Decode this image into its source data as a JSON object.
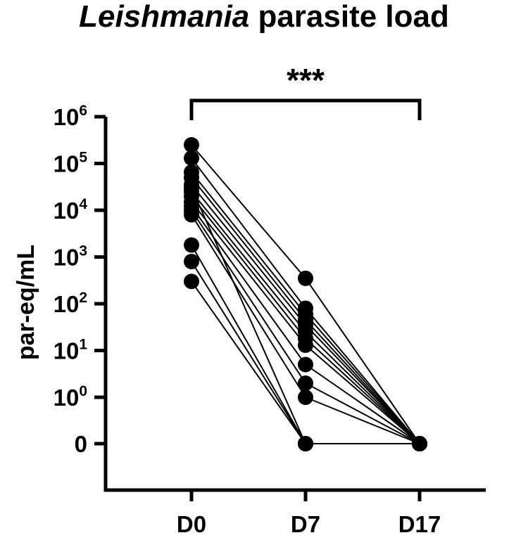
{
  "title_italic": "Leishmania",
  "title_rest": "parasite load",
  "chart_data": {
    "type": "scatter",
    "scale": "log (bottom tick represents 0)",
    "title": "Leishmania parasite load",
    "xlabel": "",
    "ylabel": "par-eq/mL",
    "categories": [
      "D0",
      "D7",
      "D17"
    ],
    "y_ticks": [
      {
        "base": "0",
        "exp": "",
        "value": 0
      },
      {
        "base": "10",
        "exp": "0",
        "value": 1
      },
      {
        "base": "10",
        "exp": "1",
        "value": 10
      },
      {
        "base": "10",
        "exp": "2",
        "value": 100
      },
      {
        "base": "10",
        "exp": "3",
        "value": 1000
      },
      {
        "base": "10",
        "exp": "4",
        "value": 10000
      },
      {
        "base": "10",
        "exp": "5",
        "value": 100000
      },
      {
        "base": "10",
        "exp": "6",
        "value": 1000000
      }
    ],
    "significance": {
      "label": "***",
      "from": "D0",
      "to": "D17"
    },
    "subjects": [
      {
        "D0": 250000,
        "D7": 350,
        "D17": 0
      },
      {
        "D0": 130000,
        "D7": 80,
        "D17": 0
      },
      {
        "D0": 65000,
        "D7": 60,
        "D17": 0
      },
      {
        "D0": 50000,
        "D7": 45,
        "D17": 0
      },
      {
        "D0": 35000,
        "D7": 35,
        "D17": 0
      },
      {
        "D0": 25000,
        "D7": 25,
        "D17": 0
      },
      {
        "D0": 20000,
        "D7": 18,
        "D17": 0
      },
      {
        "D0": 15000,
        "D7": 13,
        "D17": 0
      },
      {
        "D0": 12000,
        "D7": 5,
        "D17": 0
      },
      {
        "D0": 10000,
        "D7": 2,
        "D17": 0
      },
      {
        "D0": 8000,
        "D7": 1,
        "D17": 0
      },
      {
        "D0": 30000,
        "D7": 0,
        "D17": 0
      },
      {
        "D0": 1800,
        "D7": 0,
        "D17": 0
      },
      {
        "D0": 800,
        "D7": 0,
        "D17": 0
      },
      {
        "D0": 300,
        "D7": 0,
        "D17": 0
      }
    ]
  }
}
